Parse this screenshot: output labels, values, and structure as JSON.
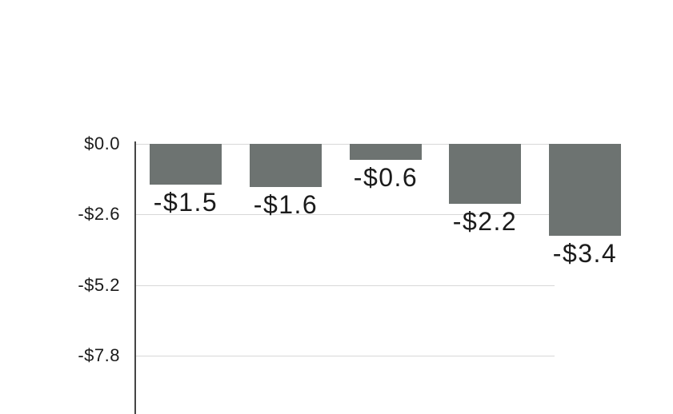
{
  "chart_data": {
    "type": "bar",
    "title": "",
    "xlabel": "",
    "ylabel": "",
    "values": [
      -1.5,
      -1.6,
      -0.6,
      -2.2,
      -3.4
    ],
    "bar_labels": [
      "-$1.5",
      "-$1.6",
      "-$0.6",
      "-$2.2",
      "-$3.4"
    ],
    "y_ticks": [
      {
        "label": "$0.0",
        "value": 0
      },
      {
        "label": "-$2.6",
        "value": -2.6
      },
      {
        "label": "-$5.2",
        "value": -5.2
      },
      {
        "label": "-$7.8",
        "value": -7.8
      }
    ],
    "ylim": [
      -10,
      0
    ],
    "grid": true,
    "legend_position": "none",
    "clipped_bar_indices": [
      4
    ]
  },
  "colors": {
    "bar": "#6d7371",
    "gridline": "#d8d8d8",
    "axis": "#454545",
    "text": "#1b1b1b",
    "background": "#ffffff"
  }
}
